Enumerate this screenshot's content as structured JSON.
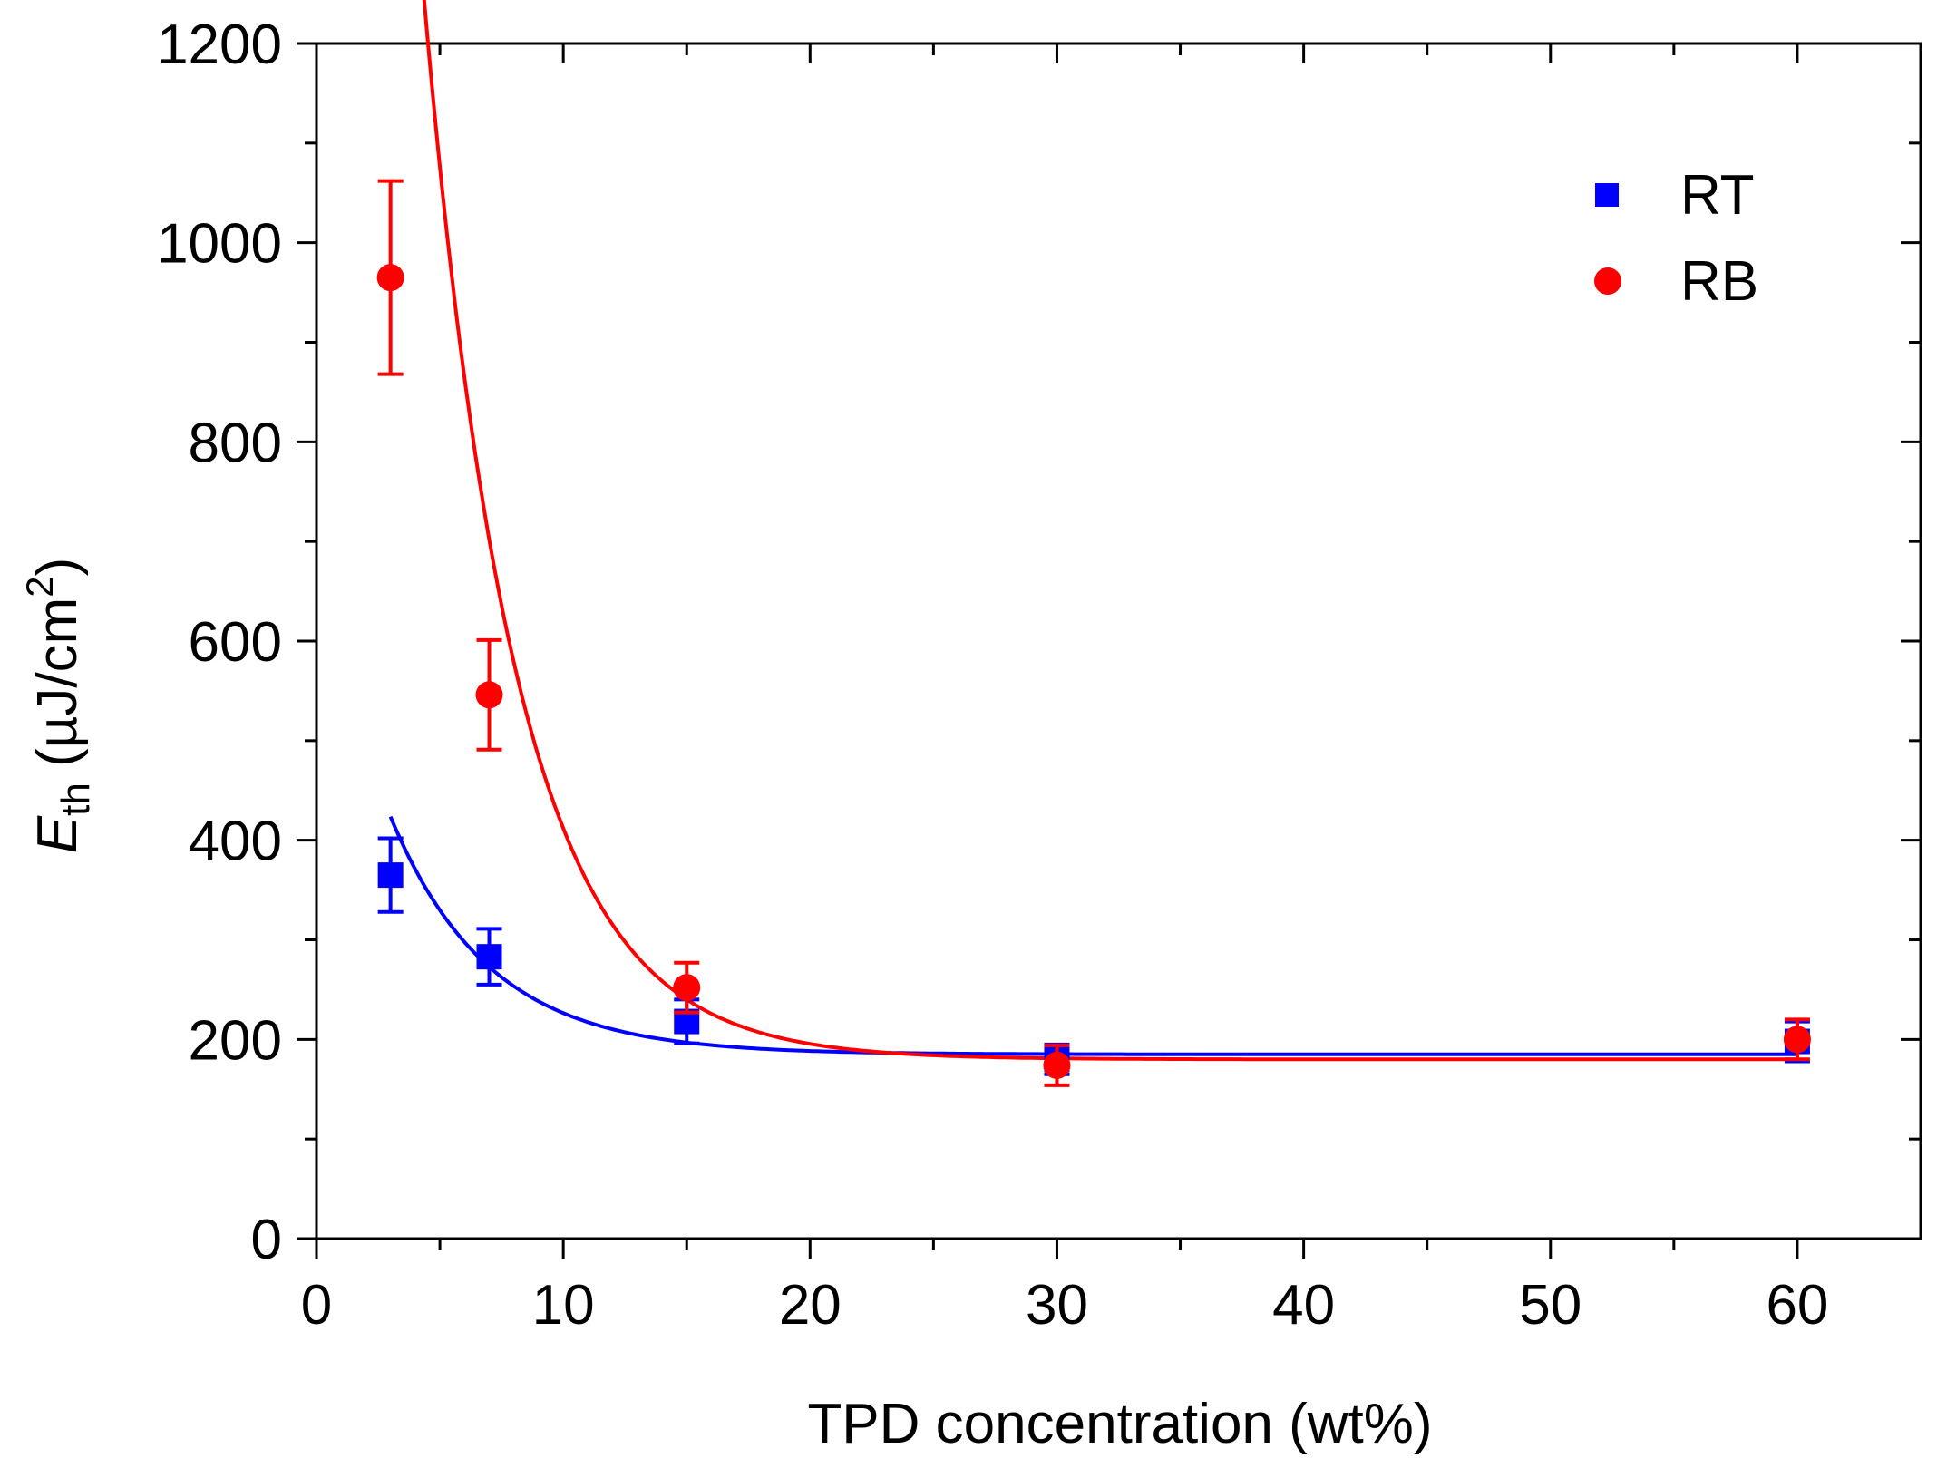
{
  "chart_data": {
    "type": "scatter",
    "title": "",
    "xlabel": "TPD concentration (wt%)",
    "ylabel": {
      "symbol": "E",
      "subscript": "th",
      "unit_prefix": " (µJ/cm",
      "unit_superscript": "2",
      "unit_suffix": ")"
    },
    "xlim": [
      0,
      65
    ],
    "ylim": [
      0,
      1200
    ],
    "xticks": [
      0,
      10,
      20,
      30,
      40,
      50,
      60
    ],
    "yticks": [
      0,
      200,
      400,
      600,
      800,
      1000,
      1200
    ],
    "x_minor_step": 5,
    "y_minor_step": 100,
    "grid": false,
    "legend_position": "top-right",
    "series": [
      {
        "name": "RT",
        "marker": "square",
        "color": "#0000ff",
        "x": [
          3,
          7,
          15,
          30,
          60
        ],
        "y": [
          365,
          283,
          218,
          180,
          198
        ],
        "yerr": [
          37,
          28,
          22,
          15,
          20
        ],
        "fit": {
          "model": "exponential decay",
          "y0": 185,
          "A": 238.6,
          "t": 4.0
        }
      },
      {
        "name": "RB",
        "marker": "circle",
        "color": "#ff0000",
        "x": [
          3,
          7,
          15,
          30,
          60
        ],
        "y": [
          965,
          546,
          252,
          174,
          200
        ],
        "yerr": [
          97,
          55,
          25,
          20,
          20
        ],
        "fit": {
          "model": "exponential decay",
          "y0": 180,
          "A": 1538,
          "t": 3.7
        }
      }
    ]
  }
}
